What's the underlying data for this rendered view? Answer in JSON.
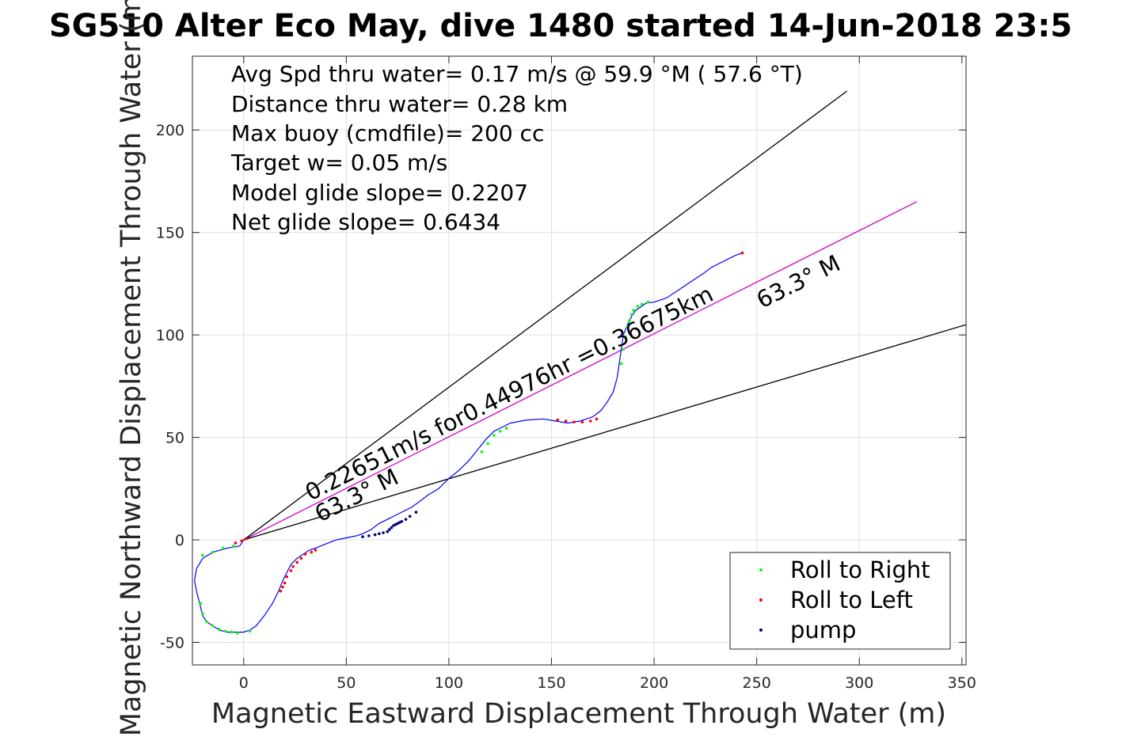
{
  "chart_data": {
    "type": "line",
    "title": "SG510 Alter Eco May, dive 1480 started 14-Jun-2018 23:5",
    "xlabel": "Magnetic Eastward Displacement Through Water (m)",
    "ylabel": "Magnetic Northward Displacement Through Water (m)",
    "xlim": [
      -25,
      352
    ],
    "ylim": [
      -61,
      236
    ],
    "xticks": [
      0,
      50,
      100,
      150,
      200,
      250,
      300,
      350
    ],
    "yticks": [
      -50,
      0,
      50,
      100,
      150,
      200
    ],
    "grid": true,
    "legend_position": "bottom-right",
    "info_lines": [
      "Avg Spd thru water=  0.17 m/s @  59.9 °M ( 57.6 °T)",
      "Distance thru water=  0.28 km",
      "Max buoy (cmdfile)= 200 cc",
      "Target w= 0.05 m/s",
      "Model glide slope= 0.2207",
      "Net glide slope= 0.6434"
    ],
    "annotations": {
      "speed": "0.22651m/s for0.44976hr =0.36675km",
      "heading_left": "63.3° M",
      "heading_right": "63.3° M"
    },
    "reference_lines": [
      {
        "name": "upper",
        "x": [
          0,
          294
        ],
        "y": [
          0,
          219
        ],
        "color": "#000000"
      },
      {
        "name": "center",
        "x": [
          0,
          328
        ],
        "y": [
          0,
          165
        ],
        "color": "#cc00cc"
      },
      {
        "name": "lower",
        "x": [
          0,
          352
        ],
        "y": [
          0,
          105
        ],
        "color": "#000000"
      }
    ],
    "track": {
      "color": "#0000ff",
      "x": [
        0,
        -2,
        -8,
        -15,
        -20,
        -23,
        -24,
        -23,
        -22,
        -21,
        -20,
        -18,
        -15,
        -12,
        -8,
        -4,
        0,
        3,
        6,
        10,
        14,
        17,
        19,
        21,
        23,
        26,
        29,
        32,
        35,
        40,
        45,
        50,
        55,
        58,
        62,
        66,
        70,
        74,
        78,
        82,
        86,
        90,
        95,
        100,
        105,
        110,
        114,
        118,
        122,
        126,
        130,
        138,
        146,
        152,
        158,
        164,
        170,
        174,
        177,
        180,
        182,
        183,
        184,
        185,
        187,
        189,
        191,
        194,
        196,
        200,
        206,
        212,
        218,
        224,
        228,
        232,
        236,
        240,
        243
      ],
      "y": [
        0,
        -3,
        -4,
        -6,
        -9,
        -14,
        -20,
        -25,
        -29,
        -33,
        -37,
        -40,
        -42,
        -44,
        -45,
        -45,
        -45,
        -44,
        -42,
        -37,
        -31,
        -25,
        -20,
        -16,
        -12,
        -9,
        -7,
        -5,
        -4,
        -2,
        0,
        1,
        2,
        3,
        5,
        8,
        10,
        12,
        14,
        16,
        19,
        22,
        25,
        30,
        34,
        39,
        44,
        49,
        53,
        55,
        57,
        58.5,
        59,
        58,
        57,
        58,
        60,
        63,
        67,
        72,
        79,
        86,
        93,
        100,
        105,
        109,
        112,
        114,
        115.5,
        116,
        118,
        122,
        126,
        130,
        133,
        135,
        137,
        139,
        140
      ]
    },
    "series": [
      {
        "name": "Roll to Right",
        "color": "#00ff00",
        "x": [
          -20,
          -15,
          -10,
          -5,
          -21,
          -20,
          -18,
          -15,
          -12,
          -9,
          -6,
          -3,
          3,
          116,
          119,
          122,
          125,
          128,
          184,
          185,
          186,
          187,
          188,
          189,
          190,
          192,
          194,
          197
        ],
        "y": [
          -7.5,
          -6,
          -4,
          -3,
          -31,
          -36,
          -40,
          -42,
          -43.5,
          -44.5,
          -45,
          -45.5,
          -44.5,
          43,
          47,
          51,
          53,
          54.5,
          86,
          93,
          99,
          104,
          107,
          110,
          112,
          114,
          115,
          116
        ]
      },
      {
        "name": "Roll to Left",
        "color": "#ff0000",
        "x": [
          -4,
          -1,
          1,
          18,
          19,
          20,
          21,
          23,
          24,
          26,
          28,
          30,
          33,
          35,
          153,
          157,
          161,
          165,
          169,
          172,
          243
        ],
        "y": [
          -1.5,
          -0.5,
          0.5,
          -25,
          -23,
          -21,
          -18,
          -15,
          -13,
          -11,
          -9,
          -7,
          -6,
          -5,
          58.5,
          58,
          57.5,
          57.5,
          58,
          59,
          140
        ]
      },
      {
        "name": "pump",
        "color": "#000080",
        "x": [
          58,
          61,
          64,
          66,
          68,
          70,
          71,
          72,
          73,
          74,
          75,
          76,
          77,
          79,
          81,
          84
        ],
        "y": [
          1.5,
          2,
          2.5,
          3,
          3.5,
          4,
          5,
          6,
          7,
          7.5,
          8,
          8.5,
          9,
          10,
          11.5,
          13.5
        ]
      }
    ]
  }
}
